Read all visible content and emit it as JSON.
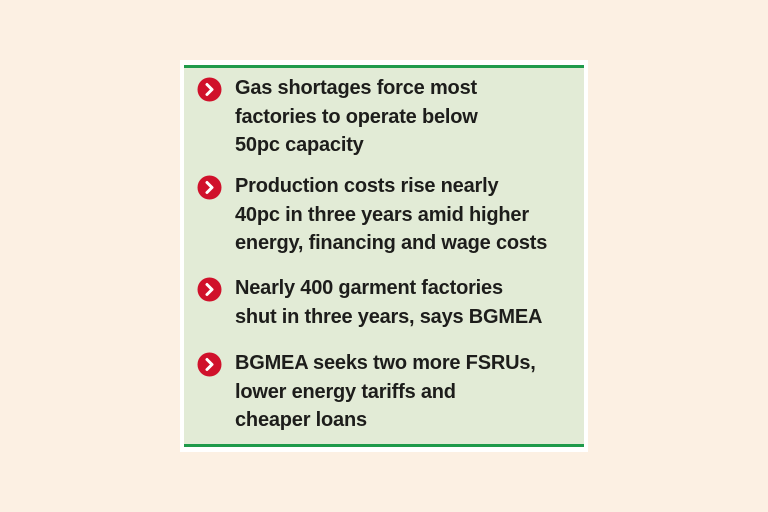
{
  "items": [
    {
      "lines": [
        "Gas shortages force most",
        "factories to operate below",
        "50pc capacity"
      ]
    },
    {
      "lines": [
        "Production costs rise nearly",
        "40pc in three years amid higher",
        "energy, financing and wage costs"
      ]
    },
    {
      "lines": [
        "Nearly 400 garment factories",
        "shut in three years, says BGMEA"
      ]
    },
    {
      "lines": [
        "BGMEA seeks two more FSRUs,",
        "lower energy tariffs and",
        "cheaper loans"
      ]
    }
  ]
}
